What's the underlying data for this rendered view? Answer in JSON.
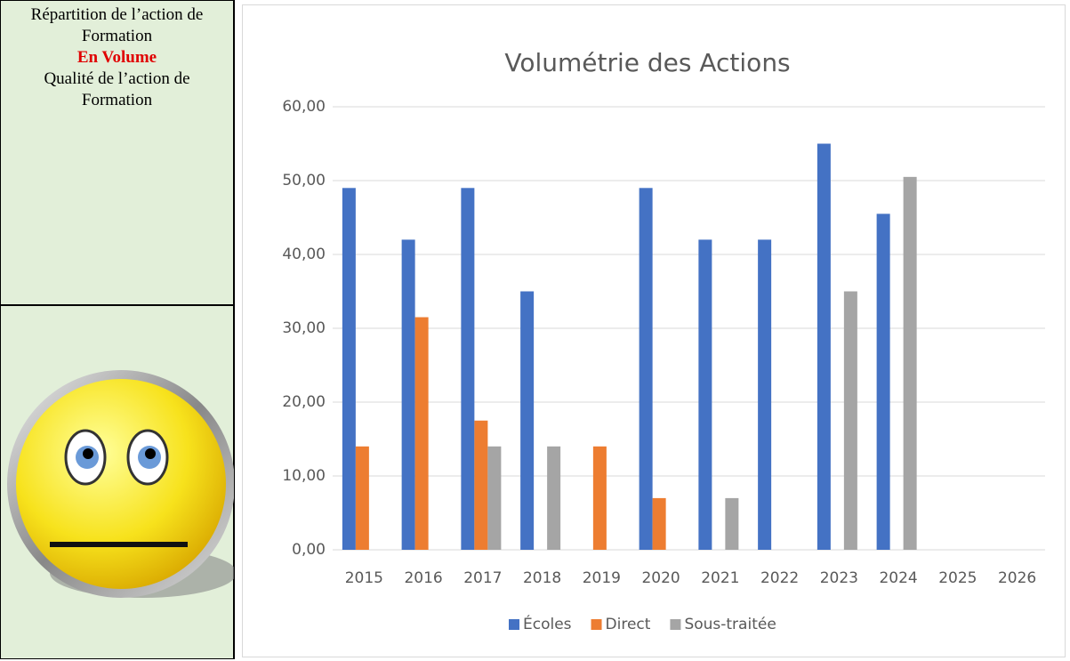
{
  "left": {
    "heading": "Répartition de l’action de Formation",
    "highlight": "En Volume",
    "subheading": "Qualité de l’action de Formation"
  },
  "chart_data": {
    "type": "bar",
    "title": "Volumétrie des Actions",
    "categories": [
      "2015",
      "2016",
      "2017",
      "2018",
      "2019",
      "2020",
      "2021",
      "2022",
      "2023",
      "2024",
      "2025",
      "2026"
    ],
    "series": [
      {
        "name": "Écoles",
        "color": "#4472c4",
        "values": [
          49,
          42,
          49,
          35,
          0,
          49,
          42,
          42,
          55,
          45.5,
          0,
          0
        ]
      },
      {
        "name": "Direct",
        "color": "#ed7d31",
        "values": [
          14,
          31.5,
          17.5,
          0,
          14,
          7,
          0,
          0,
          0,
          0,
          0,
          0
        ]
      },
      {
        "name": "Sous-traitée",
        "color": "#a5a5a5",
        "values": [
          0,
          0,
          14,
          14,
          0,
          0,
          7,
          0,
          35,
          50.5,
          0,
          0
        ]
      }
    ],
    "ylim": [
      0,
      60
    ],
    "yticks": [
      {
        "value": 0,
        "label": "0,00"
      },
      {
        "value": 10,
        "label": "10,00"
      },
      {
        "value": 20,
        "label": "20,00"
      },
      {
        "value": 30,
        "label": "30,00"
      },
      {
        "value": 40,
        "label": "40,00"
      },
      {
        "value": 50,
        "label": "50,00"
      },
      {
        "value": 60,
        "label": "60,00"
      }
    ],
    "grid": true,
    "legend": "bottom"
  }
}
